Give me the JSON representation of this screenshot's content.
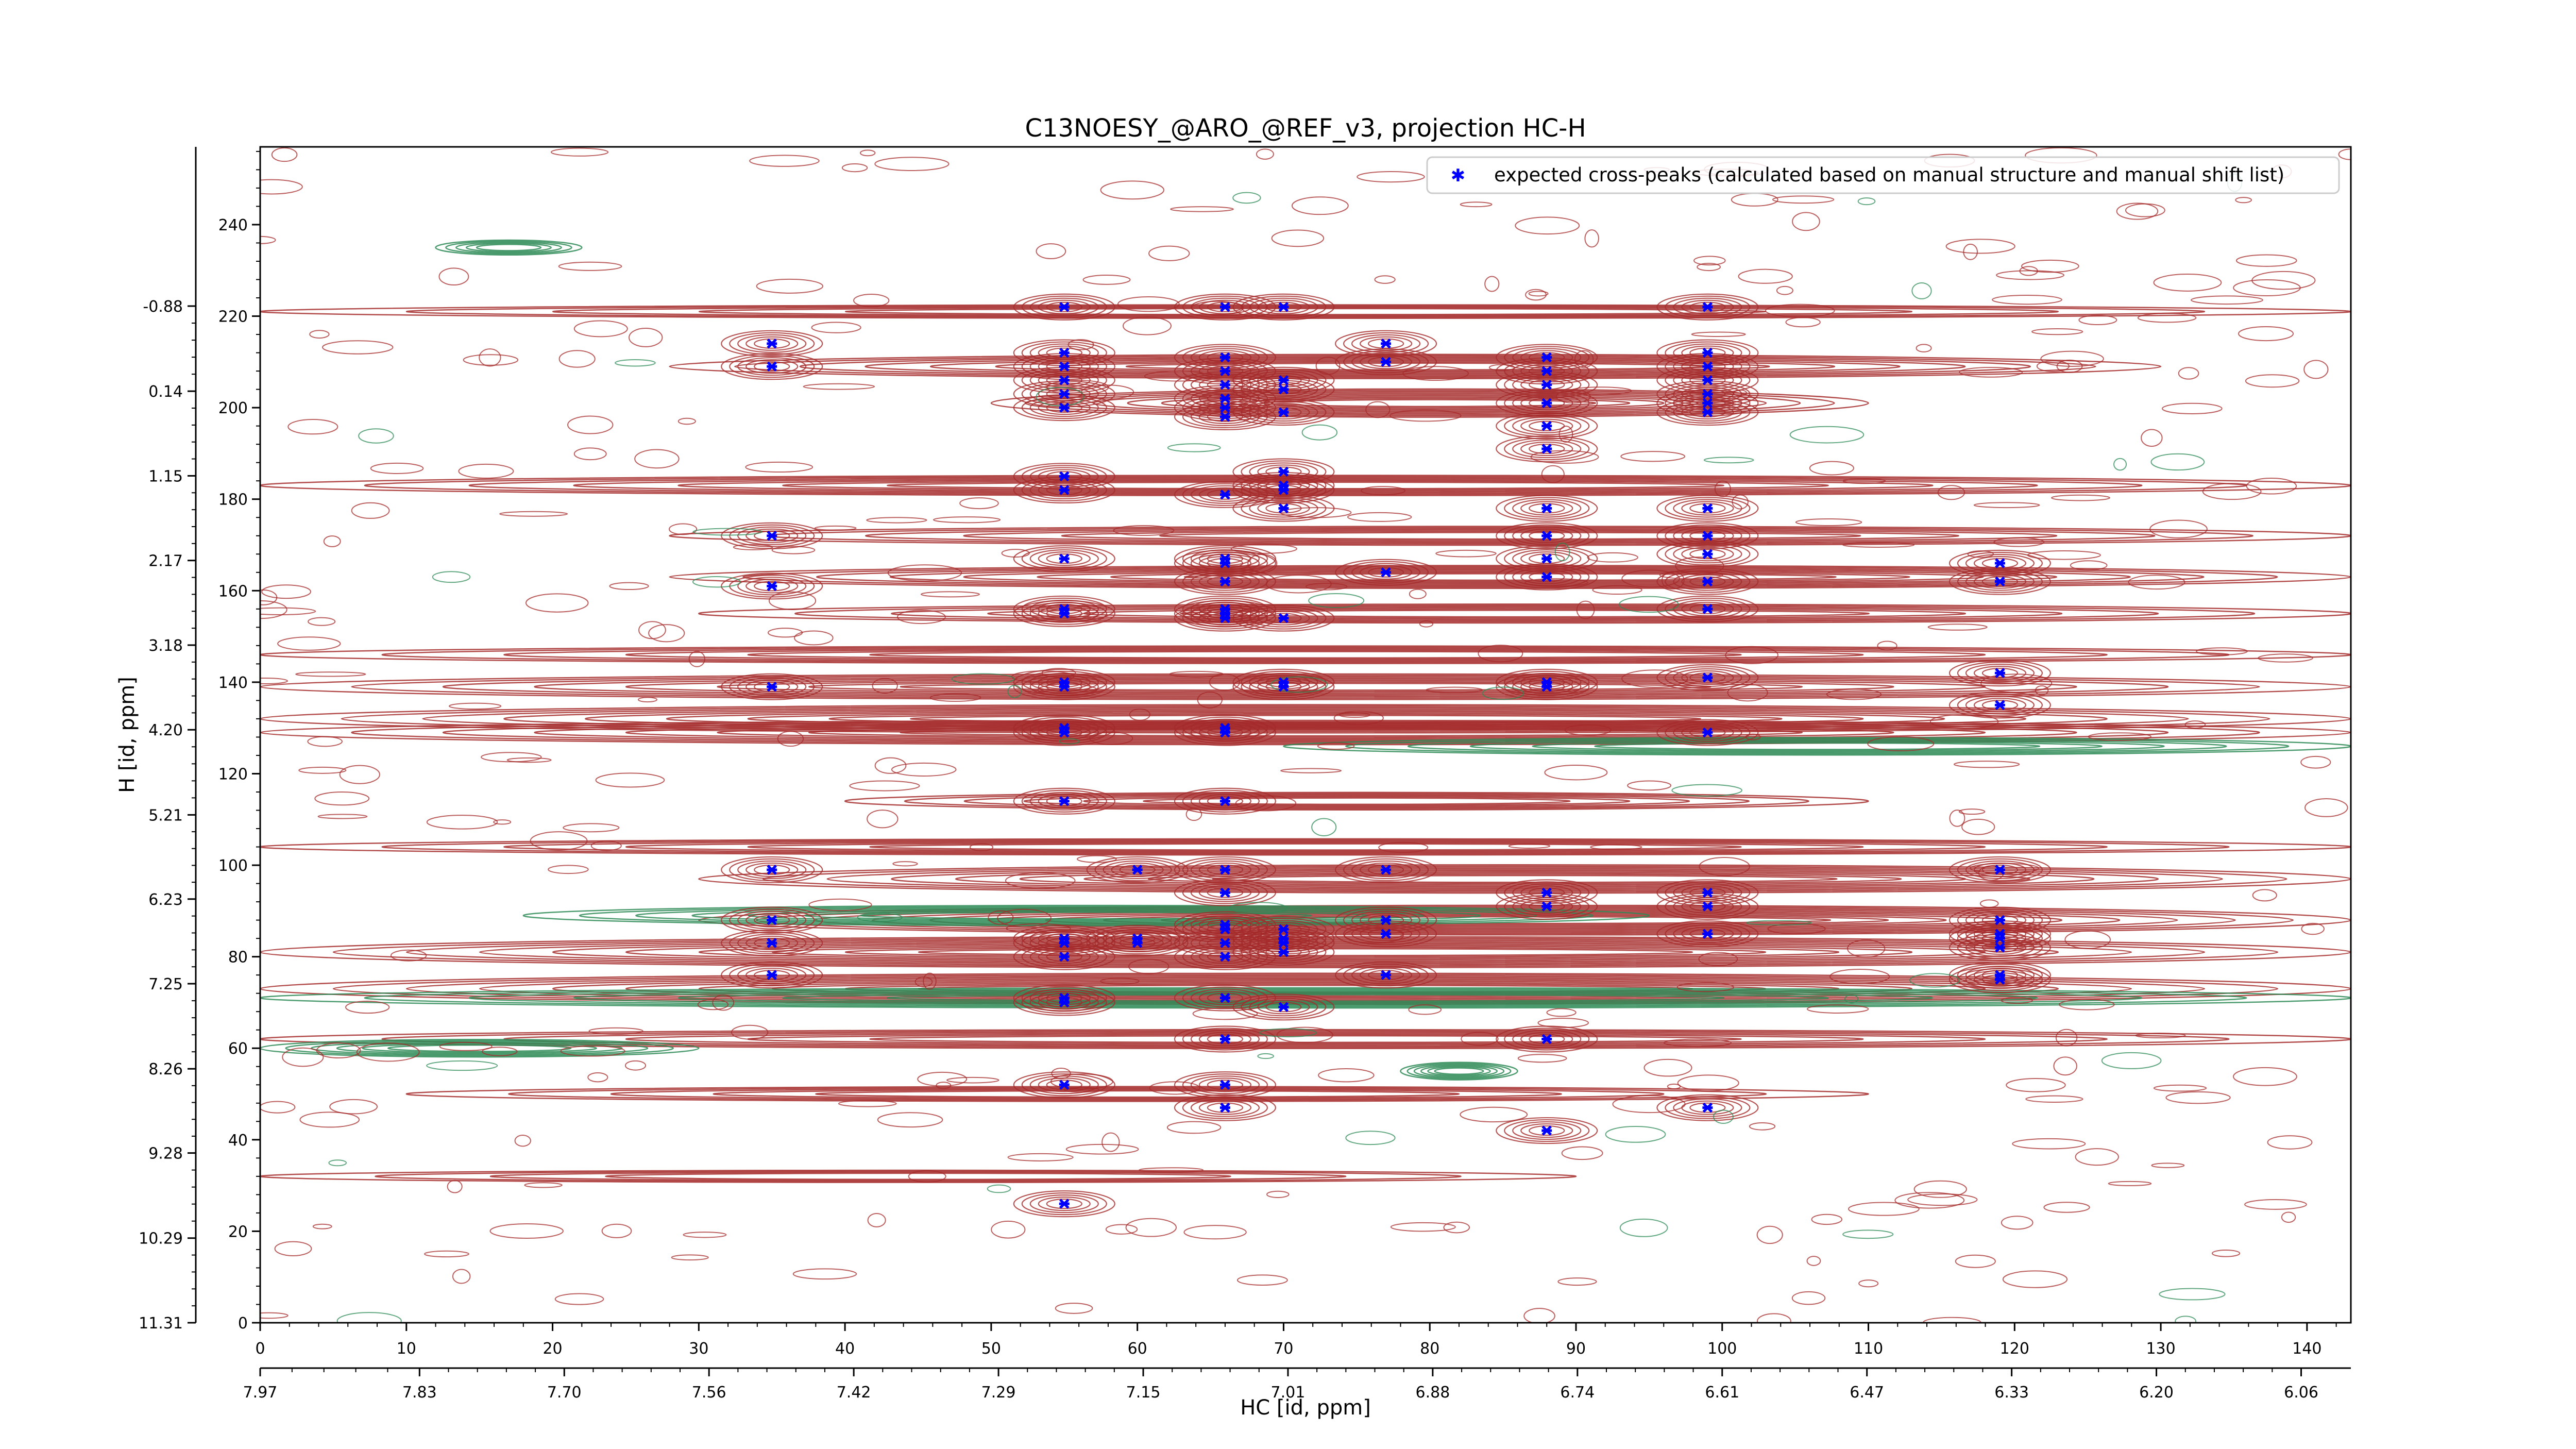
{
  "chart_data": {
    "type": "scatter",
    "title": "C13NOESY_@ARO_@REF_v3, projection HC-H",
    "xlabel": "HC [id, ppm]",
    "ylabel": "H [id, ppm]",
    "xlim": [
      0,
      143
    ],
    "ylim": [
      0,
      257
    ],
    "grid": false,
    "legend_position": "top-right",
    "x_ticks": [
      0,
      10,
      20,
      30,
      40,
      50,
      60,
      70,
      80,
      90,
      100,
      110,
      120,
      130,
      140
    ],
    "y_ticks": [
      0,
      20,
      40,
      60,
      80,
      100,
      120,
      140,
      160,
      180,
      200,
      220,
      240
    ],
    "x_ppm_ticks": [
      {
        "x": 0,
        "label": "7.97"
      },
      {
        "x": 10.9,
        "label": "7.83"
      },
      {
        "x": 20.8,
        "label": "7.70"
      },
      {
        "x": 30.7,
        "label": "7.56"
      },
      {
        "x": 40.6,
        "label": "7.42"
      },
      {
        "x": 50.5,
        "label": "7.29"
      },
      {
        "x": 60.4,
        "label": "7.15"
      },
      {
        "x": 70.3,
        "label": "7.01"
      },
      {
        "x": 80.2,
        "label": "6.88"
      },
      {
        "x": 90.1,
        "label": "6.74"
      },
      {
        "x": 100,
        "label": "6.61"
      },
      {
        "x": 109.9,
        "label": "6.47"
      },
      {
        "x": 119.8,
        "label": "6.33"
      },
      {
        "x": 129.7,
        "label": "6.20"
      },
      {
        "x": 139.6,
        "label": "6.06"
      }
    ],
    "y_ppm_ticks": [
      {
        "y": 0,
        "label": "11.31"
      },
      {
        "y": 18.5,
        "label": "10.29"
      },
      {
        "y": 37.1,
        "label": "9.28"
      },
      {
        "y": 55.5,
        "label": "8.26"
      },
      {
        "y": 74.1,
        "label": "7.25"
      },
      {
        "y": 92.6,
        "label": "6.23"
      },
      {
        "y": 111.0,
        "label": "5.21"
      },
      {
        "y": 129.6,
        "label": "4.20"
      },
      {
        "y": 148.1,
        "label": "3.18"
      },
      {
        "y": 166.6,
        "label": "2.17"
      },
      {
        "y": 185.1,
        "label": "1.15"
      },
      {
        "y": 203.6,
        "label": "0.14"
      },
      {
        "y": 222.2,
        "label": "-0.88"
      }
    ],
    "colors": {
      "positive_contour": "#a52a2a",
      "negative_contour": "#2e8b57",
      "expected_peak": "#0000ff"
    },
    "series": [
      {
        "name": "expected cross-peaks (calculated based on manual structure and manual shift list)",
        "marker": "x",
        "color": "#0000ff",
        "points": [
          [
            35,
            214
          ],
          [
            35,
            209
          ],
          [
            35,
            172
          ],
          [
            35,
            161
          ],
          [
            35,
            139
          ],
          [
            35,
            99
          ],
          [
            35,
            88
          ],
          [
            35,
            83
          ],
          [
            35,
            76
          ],
          [
            55,
            222
          ],
          [
            55,
            212
          ],
          [
            55,
            209
          ],
          [
            55,
            206
          ],
          [
            55,
            203
          ],
          [
            55,
            200
          ],
          [
            55,
            185
          ],
          [
            55,
            182
          ],
          [
            55,
            167
          ],
          [
            55,
            156
          ],
          [
            55,
            155
          ],
          [
            55,
            140
          ],
          [
            55,
            139
          ],
          [
            55,
            130
          ],
          [
            55,
            129
          ],
          [
            55,
            114
          ],
          [
            55,
            84
          ],
          [
            55,
            83
          ],
          [
            55,
            80
          ],
          [
            55,
            71
          ],
          [
            55,
            70
          ],
          [
            55,
            52
          ],
          [
            55,
            26
          ],
          [
            60,
            99
          ],
          [
            60,
            84
          ],
          [
            60,
            83
          ],
          [
            66,
            222
          ],
          [
            66,
            211
          ],
          [
            66,
            208
          ],
          [
            66,
            205
          ],
          [
            66,
            202
          ],
          [
            66,
            200
          ],
          [
            66,
            198
          ],
          [
            66,
            181
          ],
          [
            66,
            167
          ],
          [
            66,
            166
          ],
          [
            66,
            162
          ],
          [
            66,
            156
          ],
          [
            66,
            155
          ],
          [
            66,
            154
          ],
          [
            66,
            130
          ],
          [
            66,
            129
          ],
          [
            66,
            114
          ],
          [
            66,
            99
          ],
          [
            66,
            94
          ],
          [
            66,
            87
          ],
          [
            66,
            86
          ],
          [
            66,
            83
          ],
          [
            66,
            80
          ],
          [
            66,
            71
          ],
          [
            66,
            62
          ],
          [
            66,
            52
          ],
          [
            66,
            47
          ],
          [
            70,
            222
          ],
          [
            70,
            206
          ],
          [
            70,
            204
          ],
          [
            70,
            199
          ],
          [
            70,
            186
          ],
          [
            70,
            183
          ],
          [
            70,
            182
          ],
          [
            70,
            178
          ],
          [
            70,
            154
          ],
          [
            70,
            140
          ],
          [
            70,
            139
          ],
          [
            70,
            86
          ],
          [
            70,
            84
          ],
          [
            70,
            83
          ],
          [
            70,
            81
          ],
          [
            70,
            69
          ],
          [
            77,
            214
          ],
          [
            77,
            210
          ],
          [
            77,
            164
          ],
          [
            77,
            99
          ],
          [
            77,
            88
          ],
          [
            77,
            85
          ],
          [
            77,
            76
          ],
          [
            88,
            211
          ],
          [
            88,
            208
          ],
          [
            88,
            205
          ],
          [
            88,
            201
          ],
          [
            88,
            196
          ],
          [
            88,
            191
          ],
          [
            88,
            178
          ],
          [
            88,
            172
          ],
          [
            88,
            167
          ],
          [
            88,
            163
          ],
          [
            88,
            140
          ],
          [
            88,
            139
          ],
          [
            88,
            94
          ],
          [
            88,
            91
          ],
          [
            88,
            62
          ],
          [
            88,
            42
          ],
          [
            99,
            222
          ],
          [
            99,
            212
          ],
          [
            99,
            209
          ],
          [
            99,
            206
          ],
          [
            99,
            203
          ],
          [
            99,
            201
          ],
          [
            99,
            199
          ],
          [
            99,
            178
          ],
          [
            99,
            172
          ],
          [
            99,
            168
          ],
          [
            99,
            162
          ],
          [
            99,
            156
          ],
          [
            99,
            141
          ],
          [
            99,
            129
          ],
          [
            99,
            94
          ],
          [
            99,
            91
          ],
          [
            99,
            85
          ],
          [
            99,
            47
          ],
          [
            119,
            166
          ],
          [
            119,
            162
          ],
          [
            119,
            142
          ],
          [
            119,
            135
          ],
          [
            119,
            99
          ],
          [
            119,
            88
          ],
          [
            119,
            85
          ],
          [
            119,
            84
          ],
          [
            119,
            82
          ],
          [
            119,
            76
          ],
          [
            119,
            75
          ]
        ]
      }
    ],
    "contour_bands": [
      {
        "sign": "positive",
        "y": 221,
        "x": [
          0,
          143
        ],
        "strength": 0.35
      },
      {
        "sign": "positive",
        "y": 209,
        "x": [
          28,
          130
        ],
        "strength": 0.75
      },
      {
        "sign": "positive",
        "y": 201,
        "x": [
          50,
          110
        ],
        "strength": 0.9
      },
      {
        "sign": "positive",
        "y": 183,
        "x": [
          0,
          143
        ],
        "strength": 0.6
      },
      {
        "sign": "positive",
        "y": 172,
        "x": [
          28,
          143
        ],
        "strength": 0.55
      },
      {
        "sign": "positive",
        "y": 163,
        "x": [
          28,
          143
        ],
        "strength": 0.7
      },
      {
        "sign": "positive",
        "y": 155,
        "x": [
          30,
          143
        ],
        "strength": 0.55
      },
      {
        "sign": "positive",
        "y": 146,
        "x": [
          0,
          143
        ],
        "strength": 0.5
      },
      {
        "sign": "positive",
        "y": 139,
        "x": [
          0,
          143
        ],
        "strength": 0.8
      },
      {
        "sign": "positive",
        "y": 132,
        "x": [
          0,
          143
        ],
        "strength": 0.9
      },
      {
        "sign": "positive",
        "y": 129,
        "x": [
          0,
          143
        ],
        "strength": 0.75
      },
      {
        "sign": "positive",
        "y": 114,
        "x": [
          40,
          110
        ],
        "strength": 0.5
      },
      {
        "sign": "positive",
        "y": 104,
        "x": [
          0,
          143
        ],
        "strength": 0.45
      },
      {
        "sign": "positive",
        "y": 97,
        "x": [
          30,
          143
        ],
        "strength": 0.9
      },
      {
        "sign": "positive",
        "y": 88,
        "x": [
          30,
          143
        ],
        "strength": 0.95
      },
      {
        "sign": "positive",
        "y": 81,
        "x": [
          0,
          143
        ],
        "strength": 1.0
      },
      {
        "sign": "positive",
        "y": 73,
        "x": [
          0,
          143
        ],
        "strength": 1.0
      },
      {
        "sign": "positive",
        "y": 62,
        "x": [
          0,
          143
        ],
        "strength": 0.55
      },
      {
        "sign": "positive",
        "y": 50,
        "x": [
          10,
          110
        ],
        "strength": 0.4
      },
      {
        "sign": "positive",
        "y": 32,
        "x": [
          0,
          90
        ],
        "strength": 0.3
      },
      {
        "sign": "negative",
        "y": 89,
        "x": [
          18,
          95
        ],
        "strength": 0.6
      },
      {
        "sign": "negative",
        "y": 71,
        "x": [
          0,
          143
        ],
        "strength": 0.6
      },
      {
        "sign": "negative",
        "y": 126,
        "x": [
          70,
          143
        ],
        "strength": 0.5
      },
      {
        "sign": "negative",
        "y": 60,
        "x": [
          0,
          30
        ],
        "strength": 0.5
      },
      {
        "sign": "negative",
        "y": 55,
        "x": [
          78,
          86
        ],
        "strength": 0.5
      },
      {
        "sign": "negative",
        "y": 235,
        "x": [
          12,
          22
        ],
        "strength": 0.4
      }
    ]
  }
}
